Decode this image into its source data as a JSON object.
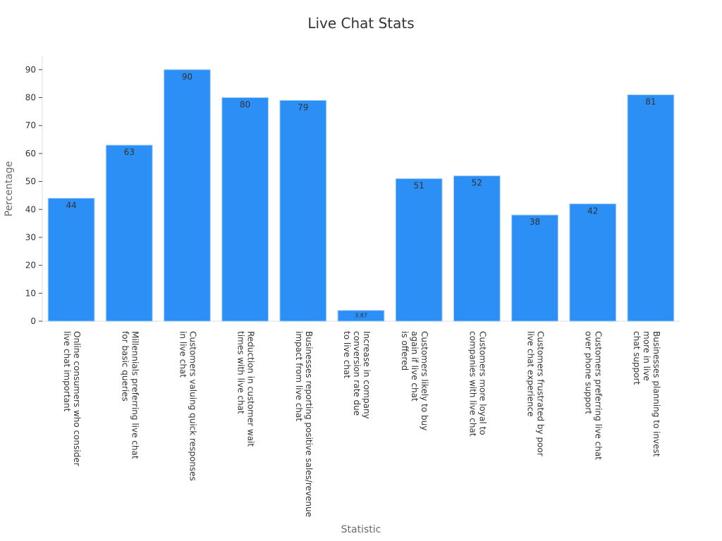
{
  "chart_data": {
    "type": "bar",
    "title": "Live Chat Stats",
    "xlabel": "Statistic",
    "ylabel": "Percentage",
    "ylim": [
      0,
      95
    ],
    "yticks": [
      0,
      10,
      20,
      30,
      40,
      50,
      60,
      70,
      80,
      90
    ],
    "grid": false,
    "bar_color": "#2b8ff5",
    "categories": [
      [
        "Online consumers who consider",
        "live chat important"
      ],
      [
        "Millennials preferring live chat",
        "for basic queries"
      ],
      [
        "Customers valuing quick responses",
        "in live chat"
      ],
      [
        "Reduction in customer wait",
        "times with live chat"
      ],
      [
        "Businesses reporting positive sales/revenue",
        "impact from live chat"
      ],
      [
        "Increase in company",
        "conversion rate due",
        "to live chat"
      ],
      [
        "Customers likely to buy",
        "again if live chat",
        "is offered"
      ],
      [
        "Customers more loyal to",
        "companies with live chat"
      ],
      [
        "Customers frustrated by poor",
        "live chat experience"
      ],
      [
        "Customers preferring live chat",
        "over phone support"
      ],
      [
        "Businesses planning to invest",
        "more in live",
        "chat support"
      ]
    ],
    "values": [
      44,
      63,
      90,
      80,
      79,
      3.87,
      51,
      52,
      38,
      42,
      81
    ],
    "value_labels": [
      "44",
      "63",
      "90",
      "80",
      "79",
      "3.87",
      "51",
      "52",
      "38",
      "42",
      "81"
    ]
  }
}
